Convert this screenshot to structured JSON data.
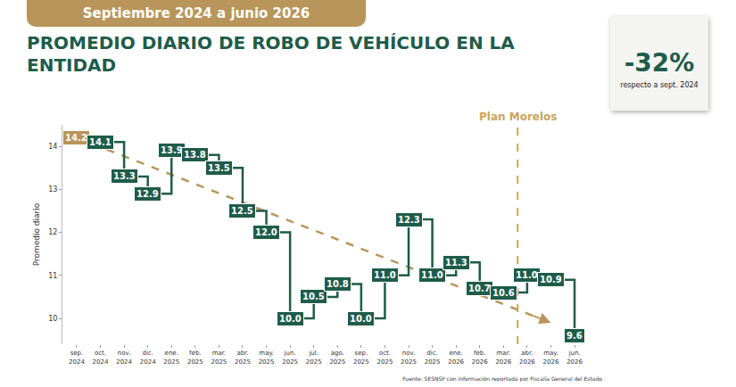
{
  "chart_data": {
    "type": "line",
    "line_style": "step",
    "header": "Septiembre 2024 a junio 2026",
    "title": "PROMEDIO DIARIO DE ROBO DE VEHÍCULO EN LA ENTIDAD",
    "y_label": "Promedio diario",
    "source": "Fuente: SESNSP con información reportada por Fiscalía General del Estado",
    "categories": [
      "sep. 2024",
      "oct. 2024",
      "nov. 2024",
      "dic. 2024",
      "ene. 2025",
      "feb. 2025",
      "mar. 2025",
      "abr. 2025",
      "may. 2025",
      "jun. 2025",
      "jul. 2025",
      "ago. 2025",
      "sep. 2025",
      "oct. 2025",
      "nov. 2025",
      "dic. 2025",
      "ene. 2026",
      "feb. 2026",
      "mar. 2026",
      "abr. 2026",
      "may. 2026",
      "jun. 2026"
    ],
    "values": [
      14.2,
      14.1,
      13.3,
      12.9,
      13.9,
      13.8,
      13.5,
      12.5,
      12.0,
      10.0,
      10.5,
      10.8,
      10.0,
      11.0,
      12.3,
      11.0,
      11.3,
      10.7,
      10.6,
      11.0,
      10.9,
      9.6
    ],
    "value_labels": [
      "14.2",
      "14.1",
      "13.3",
      "12.9",
      "13.9",
      "13.8",
      "13.5",
      "12.5",
      "12.0",
      "10.0",
      "10.5",
      "10.8",
      "10.0",
      "11.0",
      "12.3",
      "11.0",
      "11.3",
      "10.7",
      "10.6",
      "11.0",
      "10.9",
      "9.6"
    ],
    "color": "#1f5c4a",
    "colors": [
      "#b8955a",
      "#1f5c4a",
      "#1f5c4a",
      "#1f5c4a",
      "#1f5c4a",
      "#1f5c4a",
      "#1f5c4a",
      "#1f5c4a",
      "#1f5c4a",
      "#1f5c4a",
      "#1f5c4a",
      "#1f5c4a",
      "#1f5c4a",
      "#1f5c4a",
      "#1f5c4a",
      "#1f5c4a",
      "#1f5c4a",
      "#1f5c4a",
      "#1f5c4a",
      "#1f5c4a",
      "#1f5c4a",
      "#1f5c4a"
    ],
    "data_labels": true,
    "ylim": [
      9.4,
      14.5
    ],
    "yticks": [
      10,
      11,
      12,
      13,
      14
    ],
    "grid": false,
    "annotations": [
      {
        "text": "Plan Morelos",
        "x": "abr. 2026",
        "color": "#c9a55c"
      }
    ],
    "trend": {
      "from": "sep. 2024",
      "to": "may. 2026",
      "start": 14.2,
      "end": 9.9,
      "color": "#b8955a"
    },
    "change": {
      "value": -32,
      "label": "-32%",
      "text": "respecto a sept. 2024"
    }
  }
}
